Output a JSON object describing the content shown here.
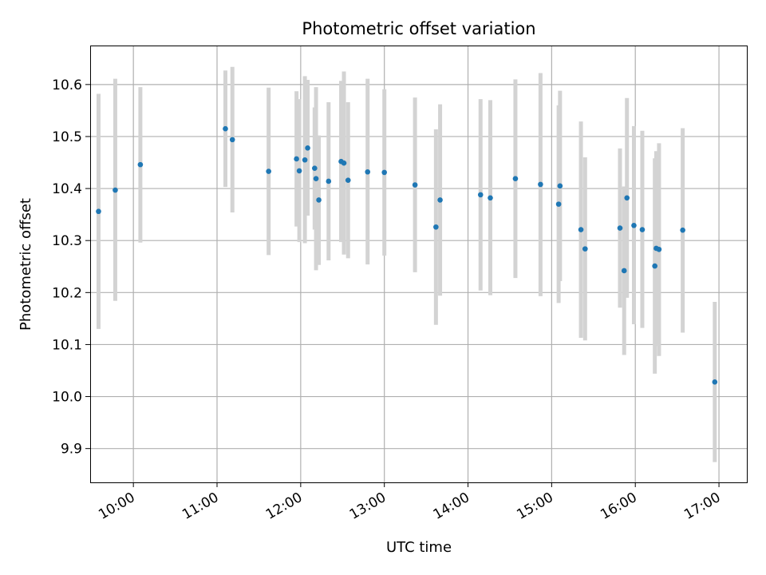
{
  "chart_data": {
    "type": "scatter",
    "title": "Photometric offset variation",
    "xlabel": "UTC time",
    "ylabel": "Photometric offset",
    "xlim": [
      "09:29",
      "17:20"
    ],
    "ylim": [
      9.835,
      10.675
    ],
    "x_ticks": [
      "10:00",
      "11:00",
      "12:00",
      "13:00",
      "14:00",
      "15:00",
      "16:00",
      "17:00"
    ],
    "y_ticks": [
      9.9,
      10.0,
      10.1,
      10.2,
      10.3,
      10.4,
      10.5,
      10.6
    ],
    "grid": true,
    "colors": {
      "point": "#1f77b4",
      "errorbar": "#d3d3d3",
      "grid": "#b0b0b0"
    },
    "points": [
      {
        "x": "09:35",
        "y": 10.356,
        "lo": 10.13,
        "hi": 10.582
      },
      {
        "x": "09:47",
        "y": 10.397,
        "lo": 10.184,
        "hi": 10.611
      },
      {
        "x": "10:05",
        "y": 10.446,
        "lo": 10.296,
        "hi": 10.595
      },
      {
        "x": "11:06",
        "y": 10.515,
        "lo": 10.403,
        "hi": 10.627
      },
      {
        "x": "11:11",
        "y": 10.494,
        "lo": 10.354,
        "hi": 10.634
      },
      {
        "x": "11:37",
        "y": 10.433,
        "lo": 10.272,
        "hi": 10.594
      },
      {
        "x": "11:57",
        "y": 10.457,
        "lo": 10.327,
        "hi": 10.587
      },
      {
        "x": "11:59",
        "y": 10.434,
        "lo": 10.297,
        "hi": 10.572
      },
      {
        "x": "12:03",
        "y": 10.455,
        "lo": 10.295,
        "hi": 10.616
      },
      {
        "x": "12:05",
        "y": 10.478,
        "lo": 10.348,
        "hi": 10.609
      },
      {
        "x": "12:10",
        "y": 10.439,
        "lo": 10.321,
        "hi": 10.556
      },
      {
        "x": "12:11",
        "y": 10.419,
        "lo": 10.243,
        "hi": 10.595
      },
      {
        "x": "12:13",
        "y": 10.378,
        "lo": 10.253,
        "hi": 10.502
      },
      {
        "x": "12:20",
        "y": 10.414,
        "lo": 10.262,
        "hi": 10.566
      },
      {
        "x": "12:29",
        "y": 10.452,
        "lo": 10.297,
        "hi": 10.607
      },
      {
        "x": "12:31",
        "y": 10.449,
        "lo": 10.273,
        "hi": 10.625
      },
      {
        "x": "12:34",
        "y": 10.416,
        "lo": 10.266,
        "hi": 10.566
      },
      {
        "x": "12:48",
        "y": 10.432,
        "lo": 10.254,
        "hi": 10.611
      },
      {
        "x": "13:00",
        "y": 10.431,
        "lo": 10.271,
        "hi": 10.591
      },
      {
        "x": "13:22",
        "y": 10.407,
        "lo": 10.239,
        "hi": 10.575
      },
      {
        "x": "13:37",
        "y": 10.326,
        "lo": 10.138,
        "hi": 10.514
      },
      {
        "x": "13:40",
        "y": 10.378,
        "lo": 10.194,
        "hi": 10.562
      },
      {
        "x": "14:09",
        "y": 10.388,
        "lo": 10.204,
        "hi": 10.572
      },
      {
        "x": "14:16",
        "y": 10.382,
        "lo": 10.195,
        "hi": 10.57
      },
      {
        "x": "14:34",
        "y": 10.419,
        "lo": 10.228,
        "hi": 10.61
      },
      {
        "x": "14:52",
        "y": 10.408,
        "lo": 10.193,
        "hi": 10.622
      },
      {
        "x": "15:05",
        "y": 10.37,
        "lo": 10.18,
        "hi": 10.56
      },
      {
        "x": "15:06",
        "y": 10.405,
        "lo": 10.222,
        "hi": 10.588
      },
      {
        "x": "15:21",
        "y": 10.321,
        "lo": 10.113,
        "hi": 10.529
      },
      {
        "x": "15:24",
        "y": 10.284,
        "lo": 10.108,
        "hi": 10.46
      },
      {
        "x": "15:49",
        "y": 10.324,
        "lo": 10.171,
        "hi": 10.477
      },
      {
        "x": "15:52",
        "y": 10.242,
        "lo": 10.08,
        "hi": 10.404
      },
      {
        "x": "15:54",
        "y": 10.382,
        "lo": 10.19,
        "hi": 10.574
      },
      {
        "x": "15:59",
        "y": 10.329,
        "lo": 10.139,
        "hi": 10.52
      },
      {
        "x": "16:05",
        "y": 10.321,
        "lo": 10.132,
        "hi": 10.511
      },
      {
        "x": "16:14",
        "y": 10.251,
        "lo": 10.044,
        "hi": 10.458
      },
      {
        "x": "16:15",
        "y": 10.285,
        "lo": 10.097,
        "hi": 10.472
      },
      {
        "x": "16:17",
        "y": 10.283,
        "lo": 10.078,
        "hi": 10.487
      },
      {
        "x": "16:34",
        "y": 10.32,
        "lo": 10.123,
        "hi": 10.516
      },
      {
        "x": "16:57",
        "y": 10.028,
        "lo": 9.874,
        "hi": 10.182
      }
    ]
  }
}
